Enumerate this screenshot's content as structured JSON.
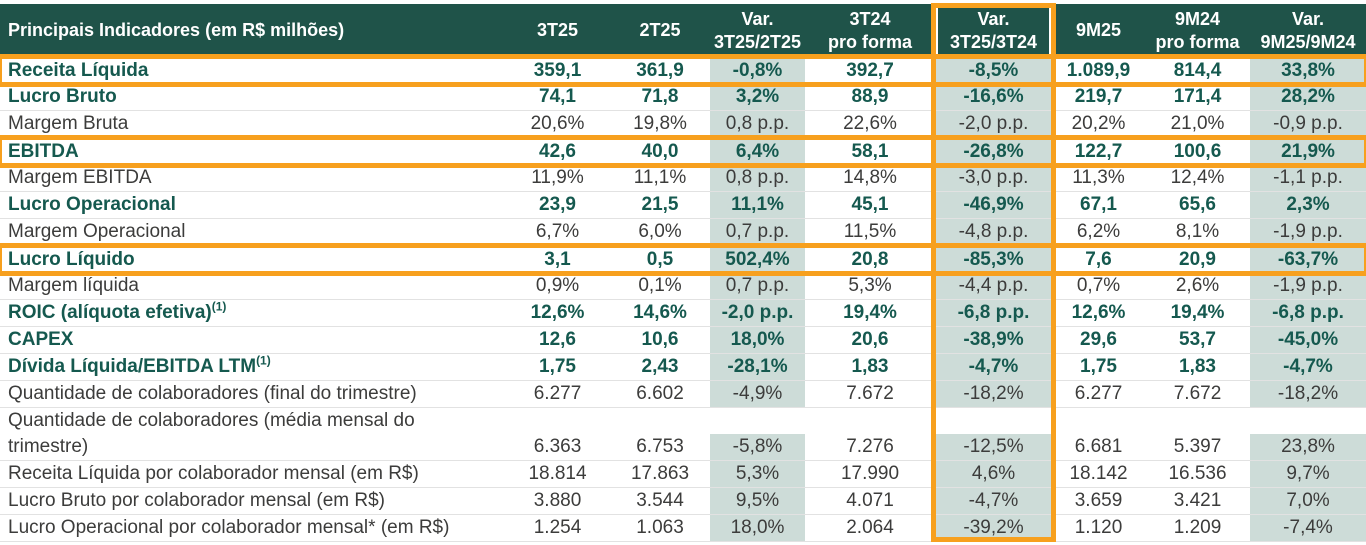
{
  "colors": {
    "header_bg": "#1F5349",
    "accent_orange": "#F7A01E",
    "emphasis_text": "#15594F",
    "body_text": "#3C3C3B",
    "shaded_column_bg": "#CDDCD8"
  },
  "header": {
    "columns": [
      {
        "label": "Principais Indicadores (em R$ milhões)"
      },
      {
        "label": "3T25"
      },
      {
        "label": "2T25"
      },
      {
        "label": "Var.\n3T25/2T25"
      },
      {
        "label": "3T24\npro forma"
      },
      {
        "label": "Var.\n3T25/3T24"
      },
      {
        "label": "9M25"
      },
      {
        "label": "9M24\npro forma"
      },
      {
        "label": "Var.\n9M25/9M24"
      }
    ]
  },
  "rows": [
    {
      "label": "Receita Líquida",
      "sup": "",
      "emphasis": true,
      "boxed": true,
      "values": [
        "359,1",
        "361,9",
        "-0,8%",
        "392,7",
        "-8,5%",
        "1.089,9",
        "814,4",
        "33,8%"
      ]
    },
    {
      "label": "Lucro Bruto",
      "sup": "",
      "emphasis": true,
      "boxed": false,
      "values": [
        "74,1",
        "71,8",
        "3,2%",
        "88,9",
        "-16,6%",
        "219,7",
        "171,4",
        "28,2%"
      ]
    },
    {
      "label": "Margem Bruta",
      "sup": "",
      "emphasis": false,
      "boxed": false,
      "values": [
        "20,6%",
        "19,8%",
        "0,8 p.p.",
        "22,6%",
        "-2,0 p.p.",
        "20,2%",
        "21,0%",
        "-0,9 p.p."
      ]
    },
    {
      "label": "EBITDA",
      "sup": "",
      "emphasis": true,
      "boxed": true,
      "values": [
        "42,6",
        "40,0",
        "6,4%",
        "58,1",
        "-26,8%",
        "122,7",
        "100,6",
        "21,9%"
      ]
    },
    {
      "label": "Margem EBITDA",
      "sup": "",
      "emphasis": false,
      "boxed": false,
      "values": [
        "11,9%",
        "11,1%",
        "0,8 p.p.",
        "14,8%",
        "-3,0 p.p.",
        "11,3%",
        "12,4%",
        "-1,1 p.p."
      ]
    },
    {
      "label": "Lucro Operacional",
      "sup": "",
      "emphasis": true,
      "boxed": false,
      "values": [
        "23,9",
        "21,5",
        "11,1%",
        "45,1",
        "-46,9%",
        "67,1",
        "65,6",
        "2,3%"
      ]
    },
    {
      "label": "Margem Operacional",
      "sup": "",
      "emphasis": false,
      "boxed": false,
      "values": [
        "6,7%",
        "6,0%",
        "0,7 p.p.",
        "11,5%",
        "-4,8 p.p.",
        "6,2%",
        "8,1%",
        "-1,9 p.p."
      ]
    },
    {
      "label": "Lucro Líquido",
      "sup": "",
      "emphasis": true,
      "boxed": true,
      "values": [
        "3,1",
        "0,5",
        "502,4%",
        "20,8",
        "-85,3%",
        "7,6",
        "20,9",
        "-63,7%"
      ]
    },
    {
      "label": "Margem líquida",
      "sup": "",
      "emphasis": false,
      "boxed": false,
      "values": [
        "0,9%",
        "0,1%",
        "0,7 p.p.",
        "5,3%",
        "-4,4 p.p.",
        "0,7%",
        "2,6%",
        "-1,9 p.p."
      ]
    },
    {
      "label": "ROIC (alíquota efetiva)",
      "sup": "(1)",
      "emphasis": true,
      "boxed": false,
      "values": [
        "12,6%",
        "14,6%",
        "-2,0 p.p.",
        "19,4%",
        "-6,8 p.p.",
        "12,6%",
        "19,4%",
        "-6,8 p.p."
      ]
    },
    {
      "label": "CAPEX",
      "sup": "",
      "emphasis": true,
      "boxed": false,
      "values": [
        "12,6",
        "10,6",
        "18,0%",
        "20,6",
        "-38,9%",
        "29,6",
        "53,7",
        "-45,0%"
      ]
    },
    {
      "label": "Dívida Líquida/EBITDA LTM",
      "sup": "(1)",
      "emphasis": true,
      "boxed": false,
      "values": [
        "1,75",
        "2,43",
        "-28,1%",
        "1,83",
        "-4,7%",
        "1,75",
        "1,83",
        "-4,7%"
      ]
    },
    {
      "label": "Quantidade de colaboradores (final do trimestre)",
      "sup": "",
      "emphasis": false,
      "boxed": false,
      "values": [
        "6.277",
        "6.602",
        "-4,9%",
        "7.672",
        "-18,2%",
        "6.277",
        "7.672",
        "-18,2%"
      ]
    },
    {
      "label": "Quantidade de colaboradores (média mensal do\ntrimestre)",
      "sup": "",
      "emphasis": false,
      "boxed": false,
      "values": [
        "6.363",
        "6.753",
        "-5,8%",
        "7.276",
        "-12,5%",
        "6.681",
        "5.397",
        "23,8%"
      ]
    },
    {
      "label": "Receita Líquida por colaborador mensal (em R$)",
      "sup": "",
      "emphasis": false,
      "boxed": false,
      "values": [
        "18.814",
        "17.863",
        "5,3%",
        "17.990",
        "4,6%",
        "18.142",
        "16.536",
        "9,7%"
      ]
    },
    {
      "label": "Lucro Bruto por colaborador mensal (em R$)",
      "sup": "",
      "emphasis": false,
      "boxed": false,
      "values": [
        "3.880",
        "3.544",
        "9,5%",
        "4.071",
        "-4,7%",
        "3.659",
        "3.421",
        "7,0%"
      ]
    },
    {
      "label": "Lucro Operacional por colaborador mensal* (em R$)",
      "sup": "",
      "emphasis": false,
      "boxed": false,
      "values": [
        "1.254",
        "1.063",
        "18,0%",
        "2.064",
        "-39,2%",
        "1.120",
        "1.209",
        "-7,4%"
      ]
    }
  ]
}
